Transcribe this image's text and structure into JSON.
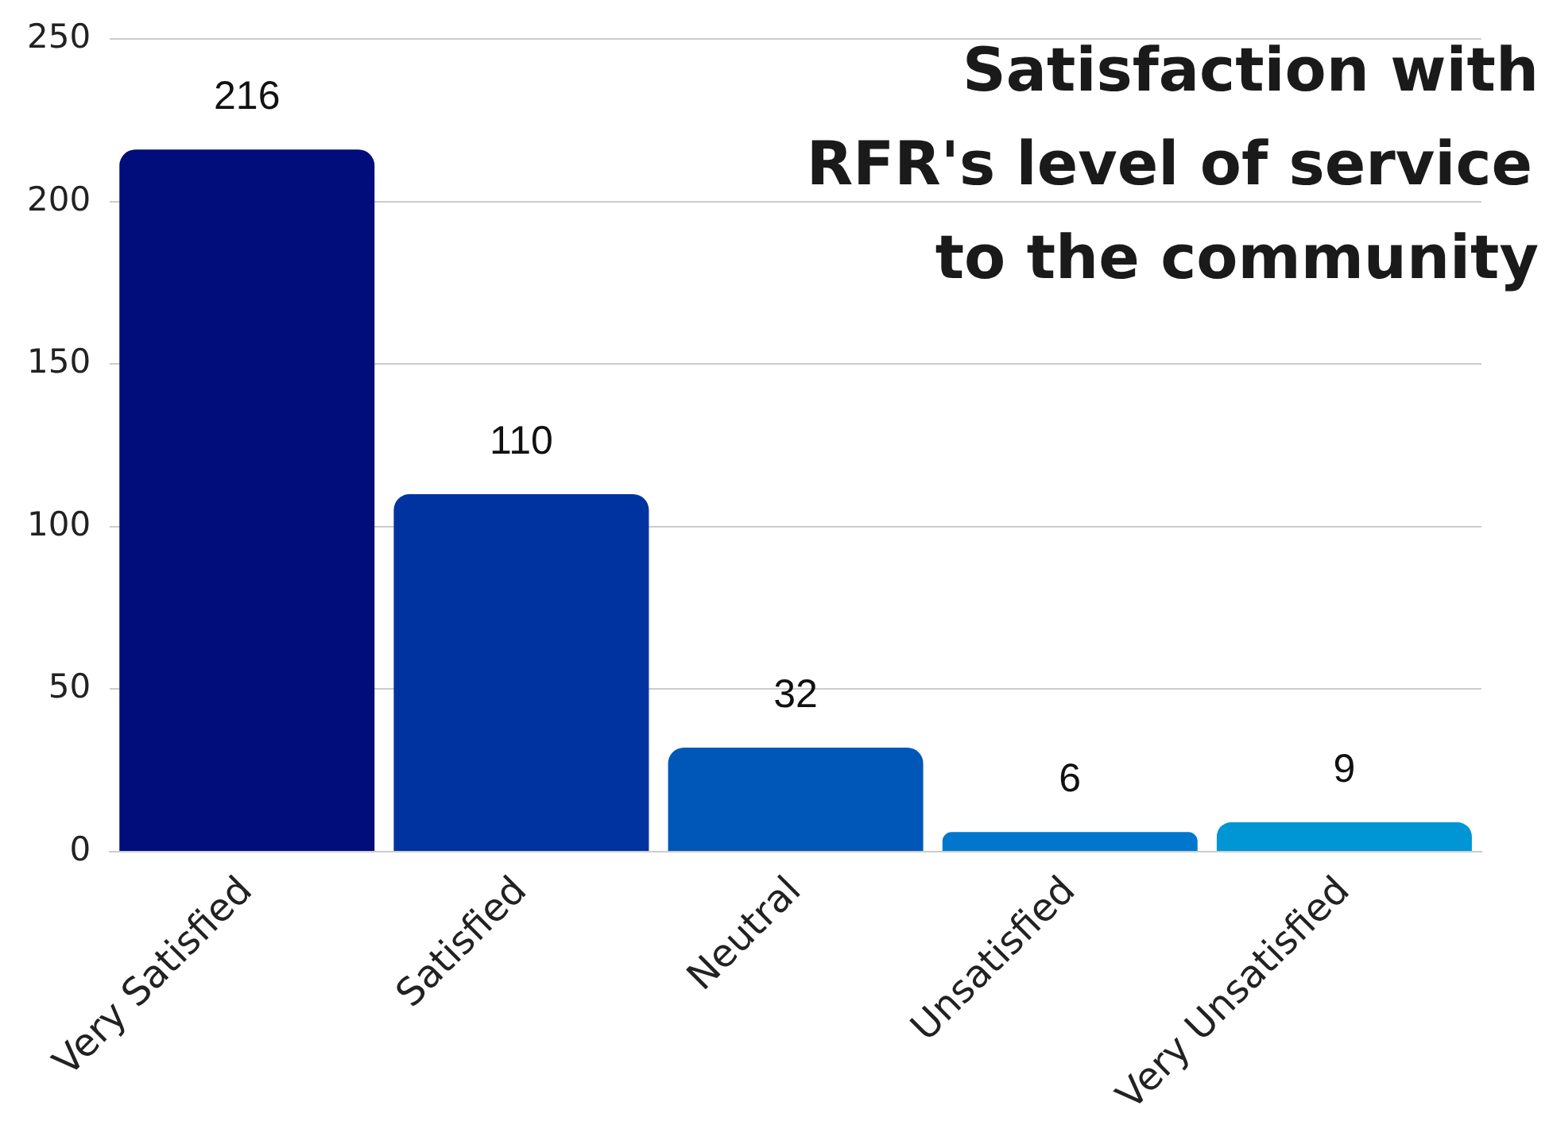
{
  "chart_data": {
    "type": "bar",
    "title": "Satisfaction with\nRFR's level of service\nto the community",
    "categories": [
      "Very Satisfied",
      "Satisfied",
      "Neutral",
      "Unsatisfied",
      "Very Unsatisfied"
    ],
    "values": [
      216,
      110,
      32,
      6,
      9
    ],
    "colors": [
      "#000d7a",
      "#0033a0",
      "#0057b8",
      "#0077cc",
      "#0095d5"
    ],
    "ylim": [
      0,
      250
    ],
    "yticks": [
      0,
      50,
      100,
      150,
      200,
      250
    ],
    "grid": "y",
    "data_labels": true,
    "legend": false
  }
}
